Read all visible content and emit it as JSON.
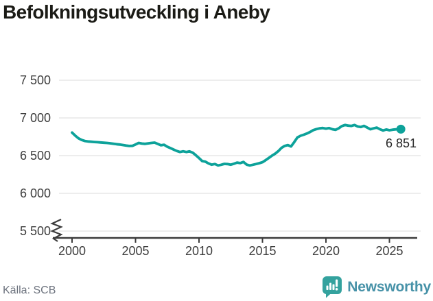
{
  "title": "Befolkningsutveckling i Aneby",
  "footer": {
    "source_label": "Källa: SCB",
    "brand_name": "Newsworthy",
    "brand_icon": "newsworthy-chart-bubble-icon"
  },
  "colors": {
    "line": "#0da29a",
    "grid": "#e2e2e2",
    "axis": "#3c3c3c",
    "tick_text": "#3d3d3d",
    "title_text": "#1b1b16",
    "source_text": "#6d737e",
    "brand_text": "#4792a8",
    "brand_icon": "#34a29e",
    "annotation_text": "#262626",
    "background": "#ffffff"
  },
  "chart_data": {
    "type": "line",
    "title": "Befolkningsutveckling i Aneby",
    "xlabel": "",
    "ylabel": "",
    "grid": "horizontal",
    "legend": "none",
    "xlim": [
      1999,
      2027.4
    ],
    "ylim": [
      5500,
      7500
    ],
    "y_axis_break": true,
    "x_ticks": [
      {
        "value": 2000,
        "label": "2000"
      },
      {
        "value": 2005,
        "label": "2005"
      },
      {
        "value": 2010,
        "label": "2010"
      },
      {
        "value": 2015,
        "label": "2015"
      },
      {
        "value": 2020,
        "label": "2020"
      },
      {
        "value": 2025,
        "label": "2025"
      }
    ],
    "y_ticks": [
      {
        "value": 7500,
        "label": "7 500"
      },
      {
        "value": 7000,
        "label": "7 000"
      },
      {
        "value": 6500,
        "label": "6 500"
      },
      {
        "value": 6000,
        "label": "6 000"
      },
      {
        "value": 5500,
        "label": "5 500"
      }
    ],
    "last_point_label": "6 851",
    "series": [
      {
        "name": "Befolkning i Aneby",
        "points": [
          [
            2000.0,
            6805
          ],
          [
            2000.25,
            6765
          ],
          [
            2000.5,
            6730
          ],
          [
            2000.75,
            6708
          ],
          [
            2001.0,
            6695
          ],
          [
            2001.25,
            6688
          ],
          [
            2001.5,
            6685
          ],
          [
            2001.75,
            6681
          ],
          [
            2002.0,
            6678
          ],
          [
            2002.25,
            6675
          ],
          [
            2002.5,
            6671
          ],
          [
            2002.75,
            6668
          ],
          [
            2003.0,
            6664
          ],
          [
            2003.25,
            6658
          ],
          [
            2003.5,
            6652
          ],
          [
            2003.75,
            6647
          ],
          [
            2004.0,
            6641
          ],
          [
            2004.25,
            6634
          ],
          [
            2004.5,
            6628
          ],
          [
            2004.75,
            6630
          ],
          [
            2005.0,
            6648
          ],
          [
            2005.25,
            6668
          ],
          [
            2005.5,
            6660
          ],
          [
            2005.75,
            6656
          ],
          [
            2006.0,
            6663
          ],
          [
            2006.25,
            6668
          ],
          [
            2006.5,
            6673
          ],
          [
            2006.75,
            6655
          ],
          [
            2007.0,
            6637
          ],
          [
            2007.25,
            6645
          ],
          [
            2007.5,
            6618
          ],
          [
            2007.75,
            6600
          ],
          [
            2008.0,
            6581
          ],
          [
            2008.25,
            6562
          ],
          [
            2008.5,
            6548
          ],
          [
            2008.75,
            6557
          ],
          [
            2009.0,
            6548
          ],
          [
            2009.25,
            6556
          ],
          [
            2009.5,
            6540
          ],
          [
            2009.75,
            6505
          ],
          [
            2010.0,
            6468
          ],
          [
            2010.25,
            6428
          ],
          [
            2010.5,
            6420
          ],
          [
            2010.75,
            6396
          ],
          [
            2011.0,
            6380
          ],
          [
            2011.25,
            6389
          ],
          [
            2011.5,
            6370
          ],
          [
            2011.75,
            6379
          ],
          [
            2012.0,
            6391
          ],
          [
            2012.25,
            6388
          ],
          [
            2012.5,
            6380
          ],
          [
            2012.75,
            6393
          ],
          [
            2013.0,
            6408
          ],
          [
            2013.25,
            6401
          ],
          [
            2013.5,
            6416
          ],
          [
            2013.75,
            6381
          ],
          [
            2014.0,
            6370
          ],
          [
            2014.25,
            6379
          ],
          [
            2014.5,
            6389
          ],
          [
            2014.75,
            6400
          ],
          [
            2015.0,
            6413
          ],
          [
            2015.25,
            6440
          ],
          [
            2015.5,
            6470
          ],
          [
            2015.75,
            6500
          ],
          [
            2016.0,
            6526
          ],
          [
            2016.25,
            6560
          ],
          [
            2016.5,
            6604
          ],
          [
            2016.75,
            6629
          ],
          [
            2017.0,
            6640
          ],
          [
            2017.25,
            6622
          ],
          [
            2017.5,
            6680
          ],
          [
            2017.75,
            6742
          ],
          [
            2018.0,
            6764
          ],
          [
            2018.25,
            6777
          ],
          [
            2018.5,
            6794
          ],
          [
            2018.75,
            6814
          ],
          [
            2019.0,
            6838
          ],
          [
            2019.25,
            6852
          ],
          [
            2019.5,
            6862
          ],
          [
            2019.75,
            6866
          ],
          [
            2020.0,
            6858
          ],
          [
            2020.25,
            6865
          ],
          [
            2020.5,
            6850
          ],
          [
            2020.75,
            6842
          ],
          [
            2021.0,
            6862
          ],
          [
            2021.25,
            6892
          ],
          [
            2021.5,
            6906
          ],
          [
            2021.75,
            6898
          ],
          [
            2022.0,
            6894
          ],
          [
            2022.25,
            6906
          ],
          [
            2022.5,
            6886
          ],
          [
            2022.75,
            6880
          ],
          [
            2023.0,
            6895
          ],
          [
            2023.25,
            6872
          ],
          [
            2023.5,
            6850
          ],
          [
            2023.75,
            6862
          ],
          [
            2024.0,
            6872
          ],
          [
            2024.25,
            6850
          ],
          [
            2024.5,
            6834
          ],
          [
            2024.75,
            6846
          ],
          [
            2025.0,
            6836
          ],
          [
            2025.25,
            6844
          ],
          [
            2025.5,
            6848
          ],
          [
            2025.9,
            6851
          ]
        ]
      }
    ]
  }
}
